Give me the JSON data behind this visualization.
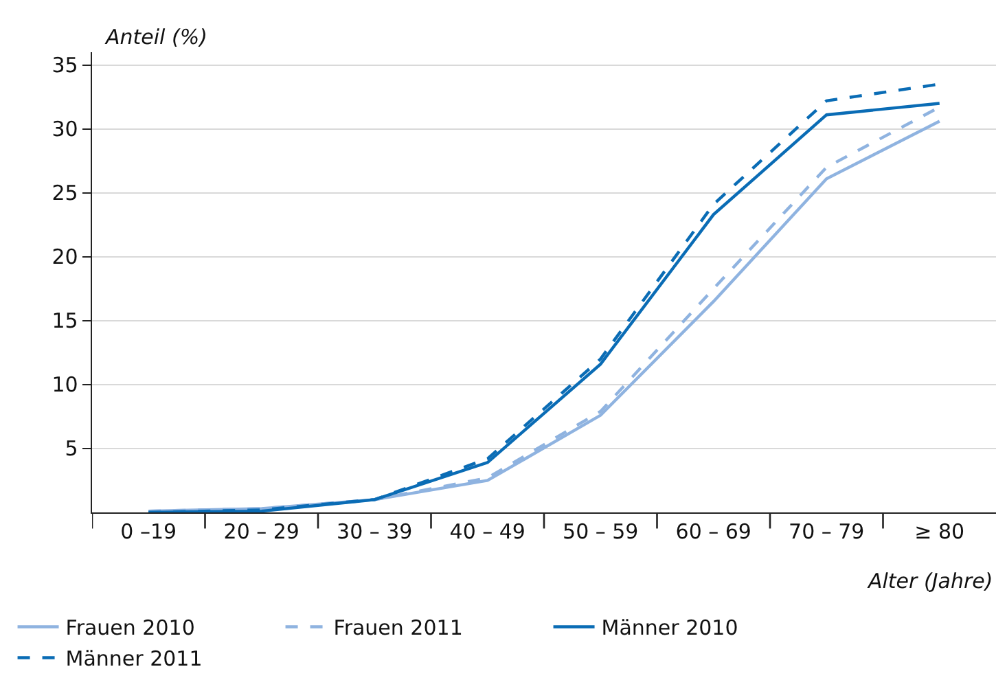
{
  "chart_data": {
    "type": "line",
    "ylabel": "Anteil (%)",
    "xlabel": "Alter (Jahre)",
    "categories": [
      "0 –19",
      "20 – 29",
      "30 – 39",
      "40 – 49",
      "50 – 59",
      "60 – 69",
      "70 – 79",
      "≥ 80"
    ],
    "series": [
      {
        "name": "Frauen 2010",
        "color": "#8fb3e0",
        "line_style": "solid",
        "values": [
          0.1,
          0.3,
          1.0,
          2.5,
          7.6,
          16.5,
          26.1,
          30.6
        ]
      },
      {
        "name": "Frauen 2011",
        "color": "#8fb3e0",
        "line_style": "dashed",
        "values": [
          0.1,
          0.3,
          1.0,
          2.7,
          7.9,
          17.5,
          27.0,
          31.7
        ]
      },
      {
        "name": "Männer 2010",
        "color": "#0a6cb5",
        "line_style": "solid",
        "values": [
          0.0,
          0.1,
          1.0,
          3.9,
          11.6,
          23.3,
          31.1,
          32.0
        ]
      },
      {
        "name": "Männer 2011",
        "color": "#0a6cb5",
        "line_style": "dashed",
        "values": [
          0.0,
          0.2,
          1.0,
          4.2,
          12.0,
          24.1,
          32.2,
          33.5
        ]
      }
    ],
    "ylim": [
      0,
      36
    ],
    "yticks": [
      5,
      10,
      15,
      20,
      25,
      30,
      35
    ],
    "grid": "y",
    "legend": "bottom",
    "marker": "none"
  }
}
